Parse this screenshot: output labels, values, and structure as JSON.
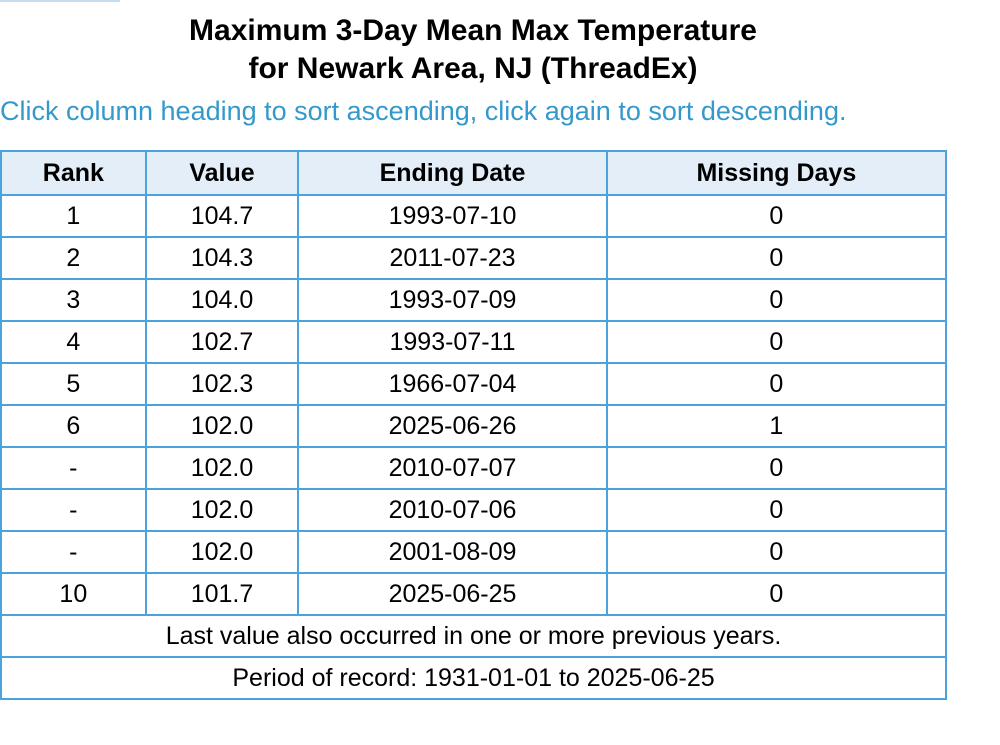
{
  "title": {
    "line1": "Maximum 3-Day Mean Max Temperature",
    "line2": "for Newark Area, NJ (ThreadEx)"
  },
  "hint": "Click column heading to sort ascending, click again to sort descending.",
  "table": {
    "headers": [
      "Rank",
      "Value",
      "Ending Date",
      "Missing Days"
    ],
    "rows": [
      [
        "1",
        "104.7",
        "1993-07-10",
        "0"
      ],
      [
        "2",
        "104.3",
        "2011-07-23",
        "0"
      ],
      [
        "3",
        "104.0",
        "1993-07-09",
        "0"
      ],
      [
        "4",
        "102.7",
        "1993-07-11",
        "0"
      ],
      [
        "5",
        "102.3",
        "1966-07-04",
        "0"
      ],
      [
        "6",
        "102.0",
        "2025-06-26",
        "1"
      ],
      [
        "-",
        "102.0",
        "2010-07-07",
        "0"
      ],
      [
        "-",
        "102.0",
        "2010-07-06",
        "0"
      ],
      [
        "-",
        "102.0",
        "2001-08-09",
        "0"
      ],
      [
        "10",
        "101.7",
        "2025-06-25",
        "0"
      ]
    ],
    "footnote": "Last value also occurred in one or more previous years.",
    "period": "Period of record: 1931-01-01 to 2025-06-25"
  },
  "colors": {
    "hint_text": "#3399cc",
    "table_border": "#4aa3df",
    "header_bg": "#e3eef8"
  }
}
